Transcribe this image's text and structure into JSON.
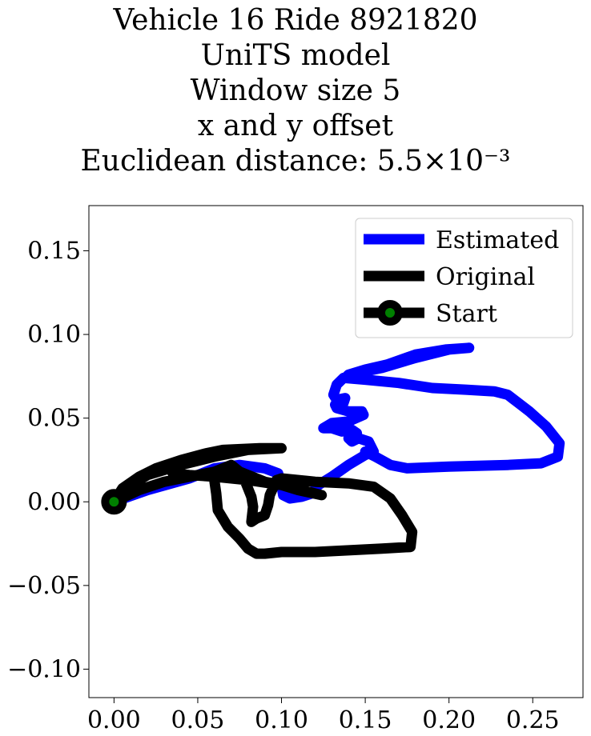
{
  "chart_data": {
    "type": "line",
    "title_lines": [
      "Vehicle 16 Ride 8921820",
      "UniTS model",
      "Window size 5",
      "x and y offset",
      "Euclidean distance: 5.5×10⁻³"
    ],
    "xlim": [
      -0.015,
      0.28
    ],
    "ylim": [
      -0.117,
      0.177
    ],
    "xticks": [
      {
        "value": 0.0,
        "label": "0.00"
      },
      {
        "value": 0.05,
        "label": "0.05"
      },
      {
        "value": 0.1,
        "label": "0.10"
      },
      {
        "value": 0.15,
        "label": "0.15"
      },
      {
        "value": 0.2,
        "label": "0.20"
      },
      {
        "value": 0.25,
        "label": "0.25"
      }
    ],
    "yticks": [
      {
        "value": -0.1,
        "label": "−0.10"
      },
      {
        "value": -0.05,
        "label": "−0.05"
      },
      {
        "value": 0.0,
        "label": "0.00"
      },
      {
        "value": 0.05,
        "label": "0.05"
      },
      {
        "value": 0.1,
        "label": "0.10"
      },
      {
        "value": 0.15,
        "label": "0.15"
      }
    ],
    "grid": false,
    "legend_position": "top-right",
    "series": [
      {
        "name": "Estimated",
        "color": "#0000ff",
        "points": [
          [
            0.0,
            0.0
          ],
          [
            0.02,
            0.007
          ],
          [
            0.045,
            0.014
          ],
          [
            0.06,
            0.02
          ],
          [
            0.075,
            0.022
          ],
          [
            0.09,
            0.02
          ],
          [
            0.098,
            0.017
          ],
          [
            0.1,
            0.01
          ],
          [
            0.101,
            0.004
          ],
          [
            0.105,
            0.002
          ],
          [
            0.112,
            0.003
          ],
          [
            0.118,
            0.005
          ],
          [
            0.122,
            0.01
          ],
          [
            0.13,
            0.015
          ],
          [
            0.14,
            0.022
          ],
          [
            0.15,
            0.028
          ],
          [
            0.155,
            0.03
          ],
          [
            0.152,
            0.036
          ],
          [
            0.146,
            0.038
          ],
          [
            0.142,
            0.036
          ],
          [
            0.14,
            0.038
          ],
          [
            0.145,
            0.041
          ],
          [
            0.142,
            0.043
          ],
          [
            0.136,
            0.042
          ],
          [
            0.13,
            0.044
          ],
          [
            0.125,
            0.044
          ],
          [
            0.13,
            0.047
          ],
          [
            0.14,
            0.048
          ],
          [
            0.149,
            0.052
          ],
          [
            0.148,
            0.054
          ],
          [
            0.14,
            0.054
          ],
          [
            0.133,
            0.056
          ],
          [
            0.132,
            0.058
          ],
          [
            0.137,
            0.059
          ],
          [
            0.138,
            0.062
          ],
          [
            0.133,
            0.061
          ],
          [
            0.131,
            0.064
          ],
          [
            0.133,
            0.07
          ],
          [
            0.137,
            0.074
          ],
          [
            0.145,
            0.077
          ],
          [
            0.16,
            0.08
          ],
          [
            0.18,
            0.086
          ],
          [
            0.2,
            0.091
          ],
          [
            0.212,
            0.092
          ],
          [
            0.198,
            0.091
          ],
          [
            0.18,
            0.088
          ],
          [
            0.163,
            0.082
          ],
          [
            0.15,
            0.079
          ],
          [
            0.14,
            0.076
          ],
          [
            0.138,
            0.074
          ],
          [
            0.15,
            0.073
          ],
          [
            0.17,
            0.071
          ],
          [
            0.19,
            0.068
          ],
          [
            0.21,
            0.067
          ],
          [
            0.227,
            0.066
          ],
          [
            0.235,
            0.064
          ],
          [
            0.248,
            0.054
          ],
          [
            0.258,
            0.045
          ],
          [
            0.266,
            0.035
          ],
          [
            0.265,
            0.027
          ],
          [
            0.255,
            0.023
          ],
          [
            0.235,
            0.022
          ],
          [
            0.2,
            0.021
          ],
          [
            0.175,
            0.02
          ],
          [
            0.165,
            0.022
          ],
          [
            0.156,
            0.027
          ],
          [
            0.15,
            0.03
          ]
        ]
      },
      {
        "name": "Original",
        "color": "#000000",
        "points": [
          [
            0.0,
            0.0
          ],
          [
            0.01,
            0.01
          ],
          [
            0.02,
            0.016
          ],
          [
            0.04,
            0.022
          ],
          [
            0.06,
            0.027
          ],
          [
            0.08,
            0.031
          ],
          [
            0.1,
            0.032
          ],
          [
            0.087,
            0.032
          ],
          [
            0.065,
            0.031
          ],
          [
            0.055,
            0.029
          ],
          [
            0.04,
            0.025
          ],
          [
            0.025,
            0.02
          ],
          [
            0.015,
            0.015
          ],
          [
            0.005,
            0.008
          ],
          [
            0.0,
            0.0
          ],
          [
            0.015,
            0.007
          ],
          [
            0.03,
            0.012
          ],
          [
            0.05,
            0.016
          ],
          [
            0.06,
            0.018
          ],
          [
            0.065,
            0.02
          ],
          [
            0.07,
            0.022
          ],
          [
            0.075,
            0.018
          ],
          [
            0.078,
            0.013
          ],
          [
            0.08,
            0.008
          ],
          [
            0.082,
            0.003
          ],
          [
            0.083,
            -0.003
          ],
          [
            0.082,
            -0.012
          ],
          [
            0.085,
            -0.01
          ],
          [
            0.09,
            -0.008
          ],
          [
            0.092,
            -0.002
          ],
          [
            0.093,
            0.004
          ],
          [
            0.097,
            0.013
          ],
          [
            0.1,
            0.014
          ],
          [
            0.12,
            0.012
          ],
          [
            0.14,
            0.011
          ],
          [
            0.155,
            0.009
          ],
          [
            0.165,
            0.002
          ],
          [
            0.172,
            -0.008
          ],
          [
            0.178,
            -0.018
          ],
          [
            0.177,
            -0.027
          ],
          [
            0.16,
            -0.028
          ],
          [
            0.14,
            -0.029
          ],
          [
            0.12,
            -0.03
          ],
          [
            0.1,
            -0.03
          ],
          [
            0.09,
            -0.031
          ],
          [
            0.085,
            -0.031
          ],
          [
            0.08,
            -0.028
          ],
          [
            0.075,
            -0.022
          ],
          [
            0.068,
            -0.015
          ],
          [
            0.062,
            -0.005
          ],
          [
            0.061,
            0.005
          ],
          [
            0.06,
            0.012
          ],
          [
            0.063,
            0.018
          ],
          [
            0.07,
            0.02
          ],
          [
            0.08,
            0.016
          ],
          [
            0.09,
            0.012
          ],
          [
            0.1,
            0.01
          ],
          [
            0.11,
            0.007
          ],
          [
            0.124,
            0.004
          ],
          [
            0.12,
            0.005
          ],
          [
            0.1,
            0.01
          ],
          [
            0.08,
            0.013
          ],
          [
            0.06,
            0.015
          ],
          [
            0.045,
            0.016
          ],
          [
            0.035,
            0.017
          ]
        ]
      }
    ],
    "start_point": {
      "name": "Start",
      "x": 0.0,
      "y": 0.0,
      "edge_color": "#000000",
      "face_color": "#008000"
    },
    "legend": [
      {
        "label": "Estimated",
        "color": "#0000ff",
        "marker": false
      },
      {
        "label": "Original",
        "color": "#000000",
        "marker": false
      },
      {
        "label": "Start",
        "color": "#000000",
        "marker": true,
        "marker_face": "#008000"
      }
    ]
  }
}
